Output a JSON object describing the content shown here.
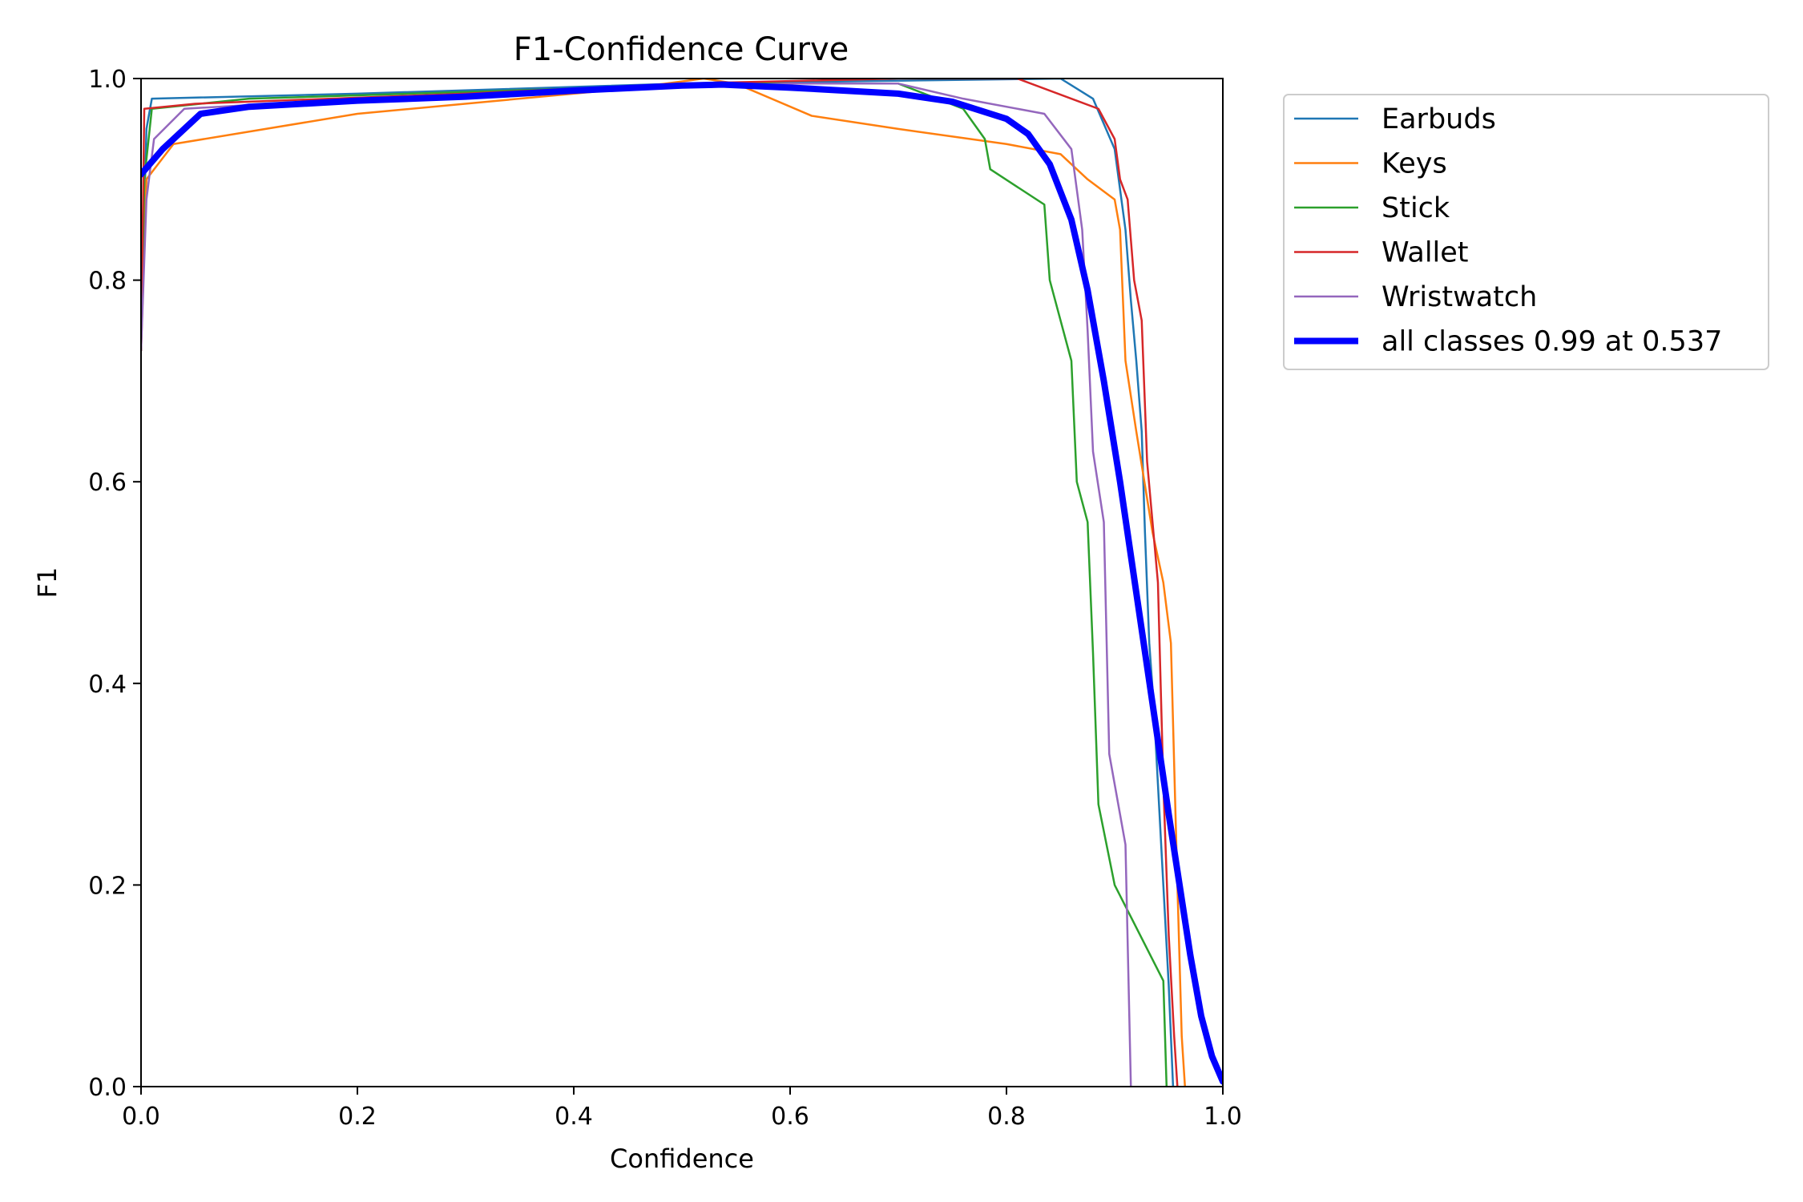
{
  "chart_data": {
    "type": "line",
    "title": "F1-Confidence Curve",
    "xlabel": "Confidence",
    "ylabel": "F1",
    "xlim": [
      0,
      1
    ],
    "ylim": [
      0,
      1
    ],
    "xticks": [
      "0.0",
      "0.2",
      "0.4",
      "0.6",
      "0.8",
      "1.0"
    ],
    "yticks": [
      "0.0",
      "0.2",
      "0.4",
      "0.6",
      "0.8",
      "1.0"
    ],
    "grid": false,
    "legend_position": "outside-top-right",
    "series": [
      {
        "name": "Earbuds",
        "color": "#1f77b4",
        "width": "thin",
        "points": [
          [
            0.0,
            0.75
          ],
          [
            0.005,
            0.95
          ],
          [
            0.01,
            0.98
          ],
          [
            0.2,
            0.985
          ],
          [
            0.5,
            0.995
          ],
          [
            0.85,
            1.0
          ],
          [
            0.88,
            0.98
          ],
          [
            0.9,
            0.93
          ],
          [
            0.91,
            0.85
          ],
          [
            0.915,
            0.78
          ],
          [
            0.92,
            0.72
          ],
          [
            0.925,
            0.65
          ],
          [
            0.928,
            0.55
          ],
          [
            0.932,
            0.44
          ],
          [
            0.936,
            0.38
          ],
          [
            0.94,
            0.3
          ],
          [
            0.945,
            0.2
          ],
          [
            0.95,
            0.1
          ],
          [
            0.952,
            0.05
          ],
          [
            0.954,
            0.0
          ]
        ]
      },
      {
        "name": "Keys",
        "color": "#ff7f0e",
        "width": "thin",
        "points": [
          [
            0.0,
            0.73
          ],
          [
            0.005,
            0.9
          ],
          [
            0.03,
            0.935
          ],
          [
            0.2,
            0.965
          ],
          [
            0.45,
            0.99
          ],
          [
            0.52,
            1.0
          ],
          [
            0.55,
            0.995
          ],
          [
            0.62,
            0.963
          ],
          [
            0.7,
            0.95
          ],
          [
            0.8,
            0.935
          ],
          [
            0.85,
            0.925
          ],
          [
            0.875,
            0.9
          ],
          [
            0.9,
            0.88
          ],
          [
            0.905,
            0.85
          ],
          [
            0.91,
            0.72
          ],
          [
            0.92,
            0.65
          ],
          [
            0.935,
            0.55
          ],
          [
            0.945,
            0.5
          ],
          [
            0.952,
            0.44
          ],
          [
            0.958,
            0.2
          ],
          [
            0.962,
            0.05
          ],
          [
            0.965,
            0.0
          ]
        ]
      },
      {
        "name": "Stick",
        "color": "#2ca02c",
        "width": "thin",
        "points": [
          [
            0.0,
            0.73
          ],
          [
            0.003,
            0.9
          ],
          [
            0.01,
            0.97
          ],
          [
            0.1,
            0.98
          ],
          [
            0.4,
            0.99
          ],
          [
            0.55,
            0.995
          ],
          [
            0.7,
            0.995
          ],
          [
            0.76,
            0.97
          ],
          [
            0.78,
            0.94
          ],
          [
            0.785,
            0.91
          ],
          [
            0.835,
            0.875
          ],
          [
            0.84,
            0.8
          ],
          [
            0.85,
            0.76
          ],
          [
            0.86,
            0.72
          ],
          [
            0.865,
            0.6
          ],
          [
            0.875,
            0.56
          ],
          [
            0.88,
            0.43
          ],
          [
            0.885,
            0.28
          ],
          [
            0.9,
            0.2
          ],
          [
            0.945,
            0.105
          ],
          [
            0.948,
            0.0
          ]
        ]
      },
      {
        "name": "Wallet",
        "color": "#d62728",
        "width": "thin",
        "points": [
          [
            0.0,
            0.73
          ],
          [
            0.003,
            0.97
          ],
          [
            0.05,
            0.975
          ],
          [
            0.3,
            0.985
          ],
          [
            0.5,
            0.995
          ],
          [
            0.7,
            1.0
          ],
          [
            0.81,
            1.0
          ],
          [
            0.885,
            0.97
          ],
          [
            0.9,
            0.94
          ],
          [
            0.905,
            0.9
          ],
          [
            0.912,
            0.88
          ],
          [
            0.918,
            0.8
          ],
          [
            0.925,
            0.76
          ],
          [
            0.93,
            0.62
          ],
          [
            0.94,
            0.5
          ],
          [
            0.945,
            0.3
          ],
          [
            0.95,
            0.15
          ],
          [
            0.955,
            0.05
          ],
          [
            0.958,
            0.0
          ]
        ]
      },
      {
        "name": "Wristwatch",
        "color": "#9467bd",
        "width": "thin",
        "points": [
          [
            0.0,
            0.73
          ],
          [
            0.005,
            0.88
          ],
          [
            0.012,
            0.94
          ],
          [
            0.04,
            0.97
          ],
          [
            0.2,
            0.98
          ],
          [
            0.45,
            0.99
          ],
          [
            0.6,
            0.995
          ],
          [
            0.7,
            0.995
          ],
          [
            0.76,
            0.98
          ],
          [
            0.835,
            0.965
          ],
          [
            0.86,
            0.93
          ],
          [
            0.87,
            0.85
          ],
          [
            0.875,
            0.75
          ],
          [
            0.88,
            0.63
          ],
          [
            0.89,
            0.56
          ],
          [
            0.895,
            0.33
          ],
          [
            0.9,
            0.3
          ],
          [
            0.91,
            0.24
          ],
          [
            0.915,
            0.0
          ]
        ]
      },
      {
        "name": "all classes 0.99 at 0.537",
        "color": "#0000ff",
        "width": "thick",
        "points": [
          [
            0.0,
            0.905
          ],
          [
            0.02,
            0.93
          ],
          [
            0.055,
            0.965
          ],
          [
            0.1,
            0.972
          ],
          [
            0.2,
            0.978
          ],
          [
            0.3,
            0.982
          ],
          [
            0.4,
            0.988
          ],
          [
            0.5,
            0.993
          ],
          [
            0.537,
            0.994
          ],
          [
            0.6,
            0.991
          ],
          [
            0.7,
            0.985
          ],
          [
            0.75,
            0.977
          ],
          [
            0.8,
            0.96
          ],
          [
            0.82,
            0.945
          ],
          [
            0.84,
            0.915
          ],
          [
            0.86,
            0.86
          ],
          [
            0.875,
            0.79
          ],
          [
            0.89,
            0.7
          ],
          [
            0.905,
            0.6
          ],
          [
            0.92,
            0.49
          ],
          [
            0.935,
            0.38
          ],
          [
            0.95,
            0.27
          ],
          [
            0.96,
            0.2
          ],
          [
            0.97,
            0.13
          ],
          [
            0.98,
            0.07
          ],
          [
            0.99,
            0.03
          ],
          [
            1.0,
            0.005
          ]
        ]
      }
    ]
  }
}
